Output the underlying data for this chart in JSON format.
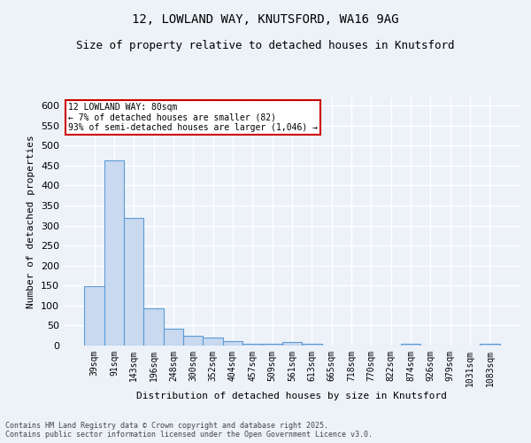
{
  "title1": "12, LOWLAND WAY, KNUTSFORD, WA16 9AG",
  "title2": "Size of property relative to detached houses in Knutsford",
  "xlabel": "Distribution of detached houses by size in Knutsford",
  "ylabel": "Number of detached properties",
  "categories": [
    "39sqm",
    "91sqm",
    "143sqm",
    "196sqm",
    "248sqm",
    "300sqm",
    "352sqm",
    "404sqm",
    "457sqm",
    "509sqm",
    "561sqm",
    "613sqm",
    "665sqm",
    "718sqm",
    "770sqm",
    "822sqm",
    "874sqm",
    "926sqm",
    "979sqm",
    "1031sqm",
    "1083sqm"
  ],
  "values": [
    148,
    463,
    319,
    93,
    41,
    24,
    20,
    12,
    5,
    5,
    8,
    5,
    0,
    0,
    0,
    0,
    5,
    0,
    0,
    0,
    5
  ],
  "bar_color": "#c9d9ef",
  "bar_edge_color": "#5b9bd5",
  "annotation_title": "12 LOWLAND WAY: 80sqm",
  "annotation_line1": "← 7% of detached houses are smaller (82)",
  "annotation_line2": "93% of semi-detached houses are larger (1,046) →",
  "annotation_box_color": "#ffffff",
  "annotation_box_edge": "#cc0000",
  "ylim": [
    0,
    620
  ],
  "yticks": [
    0,
    50,
    100,
    150,
    200,
    250,
    300,
    350,
    400,
    450,
    500,
    550,
    600
  ],
  "footnote1": "Contains HM Land Registry data © Crown copyright and database right 2025.",
  "footnote2": "Contains public sector information licensed under the Open Government Licence v3.0.",
  "bg_color": "#edf2f9",
  "plot_bg_color": "#edf2f9",
  "grid_color": "#ffffff",
  "title_fontsize": 10,
  "subtitle_fontsize": 9,
  "tick_fontsize": 7,
  "axis_label_fontsize": 8
}
